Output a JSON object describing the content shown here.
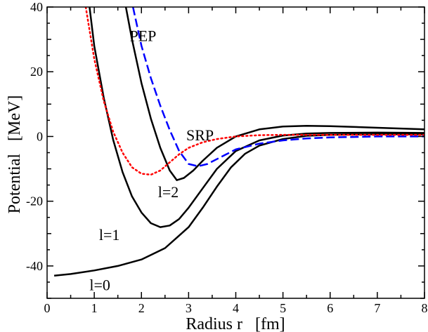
{
  "chart_data": {
    "type": "line",
    "title": "",
    "xlabel": "Radius r   [fm]",
    "ylabel": "Potential   [MeV]",
    "xlim": [
      0,
      8
    ],
    "ylim": [
      -50,
      40
    ],
    "grid": false,
    "xticks": [
      0,
      1,
      2,
      3,
      4,
      5,
      6,
      7,
      8
    ],
    "yticks": [
      -40,
      -20,
      0,
      20,
      40
    ],
    "series": [
      {
        "name": "l=0",
        "color": "#000000",
        "style": "solid",
        "x": [
          0.15,
          0.5,
          1.0,
          1.5,
          2.0,
          2.5,
          3.0,
          3.3,
          3.6,
          3.9,
          4.2,
          4.5,
          5.0,
          5.5,
          6.0,
          7.0,
          8.0
        ],
        "y": [
          -43.0,
          -42.5,
          -41.4,
          -40.0,
          -38.0,
          -34.5,
          -28.0,
          -22.0,
          -15.5,
          -9.5,
          -5.3,
          -2.8,
          -0.8,
          0.2,
          0.5,
          0.7,
          0.7
        ]
      },
      {
        "name": "l=1",
        "color": "#000000",
        "style": "solid",
        "x": [
          0.9,
          1.0,
          1.2,
          1.4,
          1.6,
          1.8,
          2.0,
          2.2,
          2.4,
          2.6,
          2.8,
          3.0,
          3.3,
          3.6,
          4.0,
          4.5,
          5.0,
          5.5,
          6.0,
          7.0,
          8.0
        ],
        "y": [
          40.0,
          28.0,
          12.0,
          -1.0,
          -11.0,
          -18.5,
          -23.5,
          -26.8,
          -28.0,
          -27.5,
          -25.5,
          -22.0,
          -16.0,
          -10.0,
          -4.5,
          -1.2,
          0.3,
          0.9,
          1.1,
          1.2,
          1.1
        ]
      },
      {
        "name": "l=2",
        "color": "#000000",
        "style": "solid",
        "x": [
          1.67,
          1.8,
          2.0,
          2.2,
          2.4,
          2.6,
          2.75,
          2.9,
          3.1,
          3.3,
          3.6,
          4.0,
          4.5,
          5.0,
          5.5,
          6.0,
          7.0,
          8.0
        ],
        "y": [
          40.0,
          30.0,
          16.5,
          5.5,
          -3.5,
          -10.5,
          -13.5,
          -12.8,
          -10.5,
          -7.5,
          -3.5,
          0.0,
          2.2,
          3.1,
          3.3,
          3.2,
          2.7,
          2.2
        ]
      },
      {
        "name": "PEP",
        "color": "#0000ff",
        "style": "dashed",
        "x": [
          1.82,
          2.0,
          2.2,
          2.4,
          2.6,
          2.8,
          3.0,
          3.2,
          3.4,
          3.6,
          3.8,
          4.0,
          4.5,
          5.0,
          5.5,
          6.0,
          7.0,
          8.0
        ],
        "y": [
          40.0,
          28.0,
          18.0,
          9.5,
          2.0,
          -4.5,
          -8.5,
          -9.2,
          -8.5,
          -7.0,
          -5.5,
          -4.0,
          -2.2,
          -1.2,
          -0.6,
          -0.3,
          0.0,
          0.0
        ]
      },
      {
        "name": "SRP",
        "color": "#ff0000",
        "style": "dotted",
        "x": [
          0.82,
          1.0,
          1.2,
          1.4,
          1.6,
          1.8,
          2.0,
          2.2,
          2.4,
          2.6,
          2.8,
          3.0,
          3.3,
          3.6,
          4.0,
          4.5,
          5.0,
          6.0,
          7.0,
          8.0
        ],
        "y": [
          40.0,
          24.0,
          11.0,
          1.5,
          -5.0,
          -9.5,
          -11.5,
          -11.8,
          -10.5,
          -8.0,
          -5.5,
          -3.5,
          -1.8,
          -0.8,
          0.0,
          0.4,
          0.5,
          0.5,
          0.5,
          0.5
        ]
      }
    ],
    "annotations": [
      {
        "text": "PEP",
        "x": 1.75,
        "y": 29.5
      },
      {
        "text": "SRP",
        "x": 2.95,
        "y": -1.2
      },
      {
        "text": "l=2",
        "x": 2.35,
        "y": -18.8
      },
      {
        "text": "l=1",
        "x": 1.1,
        "y": -32.0
      },
      {
        "text": "l=0",
        "x": 0.9,
        "y": -47.5
      }
    ]
  }
}
